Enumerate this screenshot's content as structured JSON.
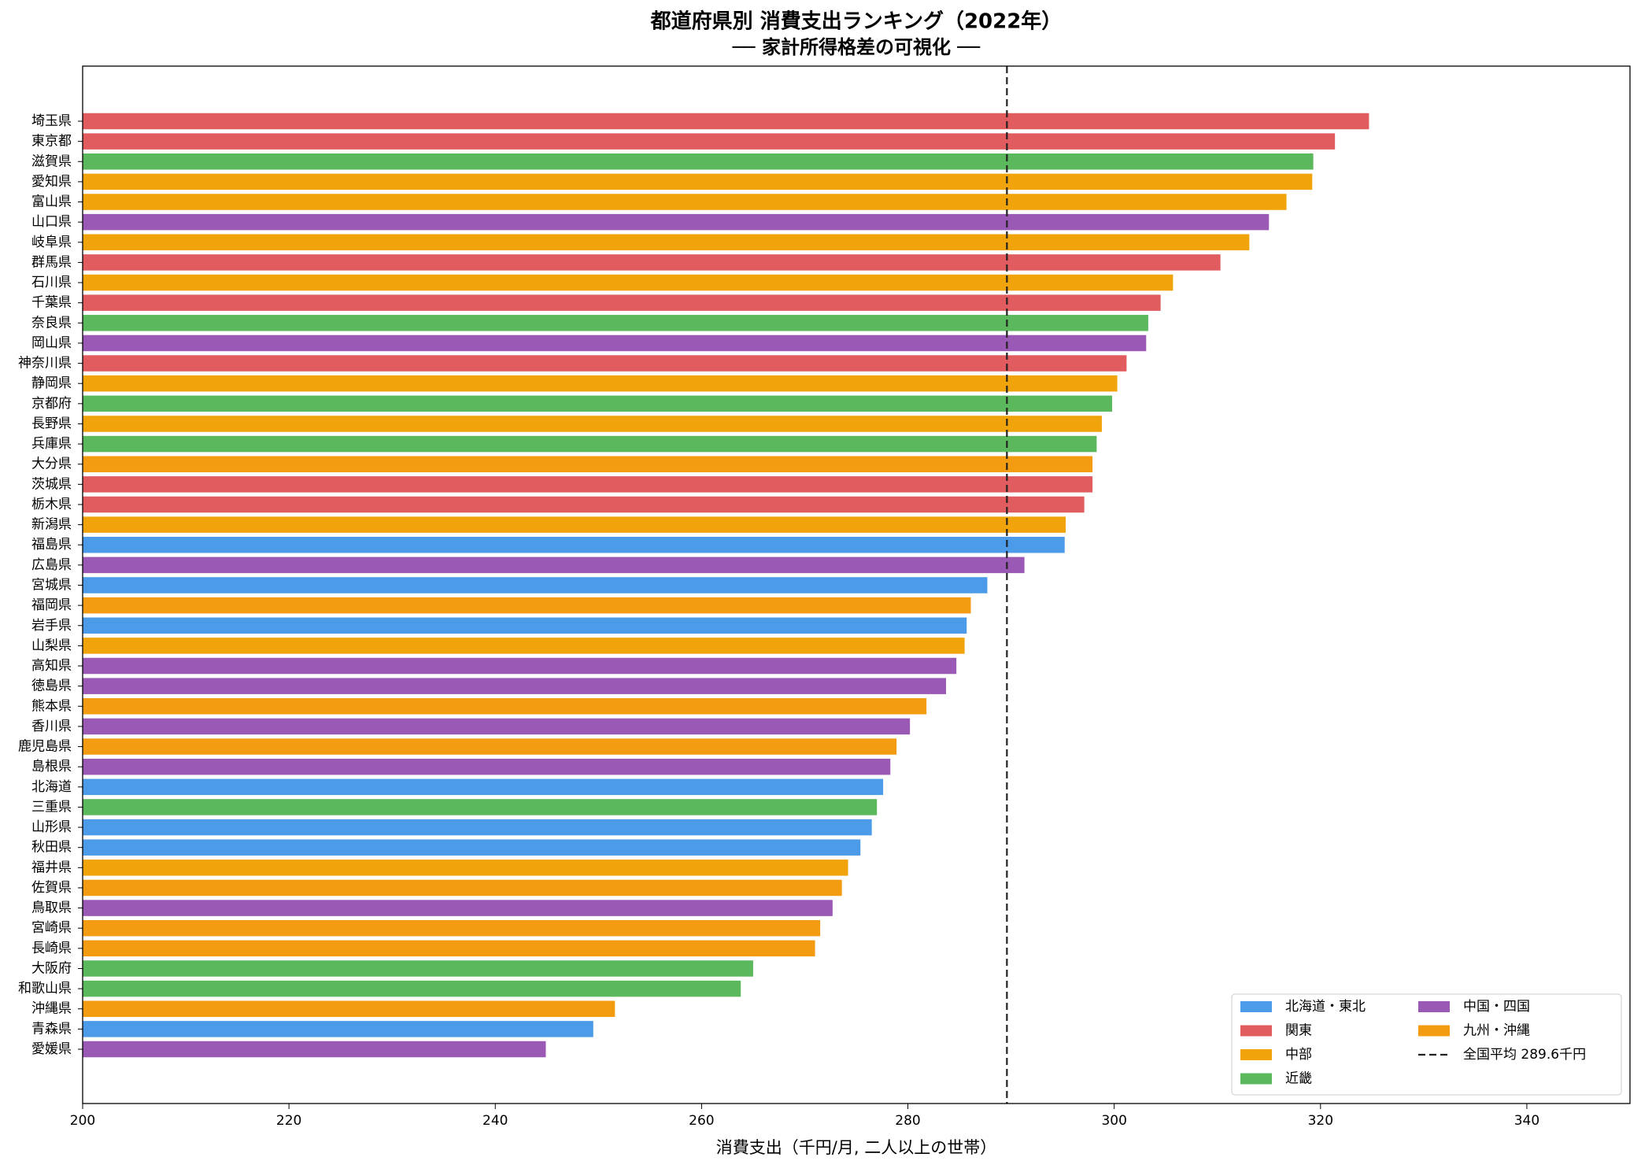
{
  "chart_data": {
    "type": "barh",
    "title": "都道府県別 消費支出ランキング（2022年）",
    "subtitle": "── 家計所得格差の可視化 ──",
    "x_label": "消費支出（千円/月, 二人以上の世帯）",
    "categories": [
      "埼玉県",
      "東京都",
      "滋賀県",
      "愛知県",
      "富山県",
      "山口県",
      "岐阜県",
      "群馬県",
      "石川県",
      "千葉県",
      "奈良県",
      "岡山県",
      "神奈川県",
      "静岡県",
      "京都府",
      "長野県",
      "兵庫県",
      "大分県",
      "茨城県",
      "栃木県",
      "新潟県",
      "福島県",
      "広島県",
      "宮城県",
      "福岡県",
      "岩手県",
      "山梨県",
      "高知県",
      "徳島県",
      "熊本県",
      "香川県",
      "鹿児島県",
      "島根県",
      "北海道",
      "三重県",
      "山形県",
      "秋田県",
      "福井県",
      "佐賀県",
      "鳥取県",
      "宮崎県",
      "長崎県",
      "大阪府",
      "和歌山県",
      "沖縄県",
      "青森県",
      "愛媛県"
    ],
    "values": [
      324.7,
      321.4,
      319.3,
      319.2,
      316.7,
      315.0,
      313.1,
      310.3,
      305.7,
      304.5,
      303.3,
      303.1,
      301.2,
      300.3,
      299.8,
      298.8,
      298.3,
      297.9,
      297.9,
      297.1,
      295.3,
      295.2,
      291.3,
      287.7,
      286.1,
      285.7,
      285.5,
      284.7,
      283.7,
      281.8,
      280.2,
      278.9,
      278.3,
      277.6,
      277.0,
      276.5,
      275.4,
      274.2,
      273.6,
      272.7,
      271.5,
      271.0,
      265.0,
      263.8,
      251.6,
      249.5,
      244.9
    ],
    "colors": [
      "#e05c5f",
      "#e05c5f",
      "#5cb85c",
      "#f0a30a",
      "#f0a30a",
      "#9b59b6",
      "#f0a30a",
      "#e05c5f",
      "#f0a30a",
      "#e05c5f",
      "#5cb85c",
      "#9b59b6",
      "#e05c5f",
      "#f0a30a",
      "#5cb85c",
      "#f0a30a",
      "#5cb85c",
      "#f39c12",
      "#e05c5f",
      "#e05c5f",
      "#f0a30a",
      "#4c9be8",
      "#9b59b6",
      "#4c9be8",
      "#f39c12",
      "#4c9be8",
      "#f0a30a",
      "#9b59b6",
      "#9b59b6",
      "#f39c12",
      "#9b59b6",
      "#f39c12",
      "#9b59b6",
      "#4c9be8",
      "#5cb85c",
      "#4c9be8",
      "#4c9be8",
      "#f0a30a",
      "#f39c12",
      "#9b59b6",
      "#f39c12",
      "#f39c12",
      "#5cb85c",
      "#5cb85c",
      "#f39c12",
      "#4c9be8",
      "#9b59b6"
    ],
    "legend_items": [
      {
        "name": "北海道・東北",
        "color": "#4c9be8"
      },
      {
        "name": "関東",
        "color": "#e05c5f"
      },
      {
        "name": "中部",
        "color": "#f0a30a"
      },
      {
        "name": "近畿",
        "color": "#5cb85c"
      },
      {
        "name": "中国・四国",
        "color": "#9b59b6"
      },
      {
        "name": "九州・沖縄",
        "color": "#f39c12"
      }
    ],
    "average": 289.6,
    "average_label": "全国平均 289.6千円",
    "legend": "lower right",
    "xlim": [
      200,
      350
    ],
    "xticks": [
      200,
      220,
      240,
      260,
      280,
      300,
      320,
      340
    ]
  }
}
